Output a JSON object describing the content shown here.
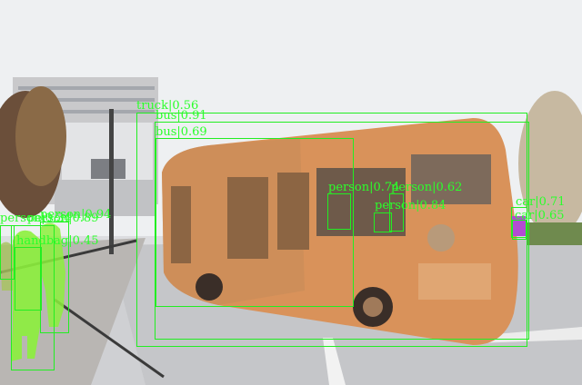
{
  "scene": {
    "description_colors": {
      "box": "#22ee22",
      "label": "#2bff2b",
      "bus_mask": "#d9925a",
      "person_mask": "#8cf03c"
    }
  },
  "detections": [
    {
      "id": "truck",
      "label": "truck|0.56"
    },
    {
      "id": "bus-a",
      "label": "bus|0.91"
    },
    {
      "id": "bus-b",
      "label": "bus|0.69"
    },
    {
      "id": "person-bus-1",
      "label": "person|0.74"
    },
    {
      "id": "person-bus-2",
      "label": "person|0.84"
    },
    {
      "id": "person-bus-3",
      "label": "person|0.62"
    },
    {
      "id": "car-right-1",
      "label": "car|0.71"
    },
    {
      "id": "car-right-2",
      "label": "car|0.65"
    },
    {
      "id": "person-left-1",
      "label": "person|0.94"
    },
    {
      "id": "person-left-2",
      "label": "person|0.89"
    },
    {
      "id": "person-left-3",
      "label": "person|0.34"
    },
    {
      "id": "handbag",
      "label": "handbag|0.45"
    }
  ]
}
